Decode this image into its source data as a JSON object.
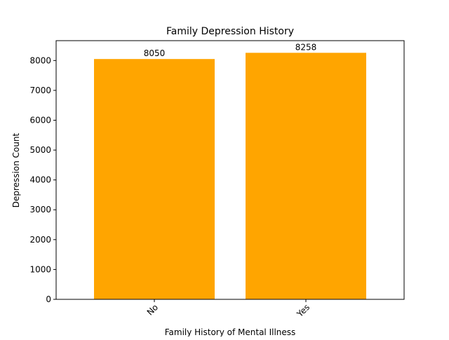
{
  "chart_data": {
    "type": "bar",
    "title": "Family Depression History",
    "xlabel": "Family History of Mental Illness",
    "ylabel": "Depression Count",
    "categories": [
      "No",
      "Yes"
    ],
    "values": [
      8050,
      8258
    ],
    "data_labels": [
      "8050",
      "8258"
    ],
    "ylim": [
      0,
      8665
    ],
    "yticks": [
      0,
      1000,
      2000,
      3000,
      4000,
      5000,
      6000,
      7000,
      8000
    ],
    "ytick_labels": [
      "0",
      "1000",
      "2000",
      "3000",
      "4000",
      "5000",
      "6000",
      "7000",
      "8000"
    ],
    "bar_color": "#FFA500",
    "grid": false,
    "legend": "none",
    "xtick_rotation_deg": 45
  }
}
